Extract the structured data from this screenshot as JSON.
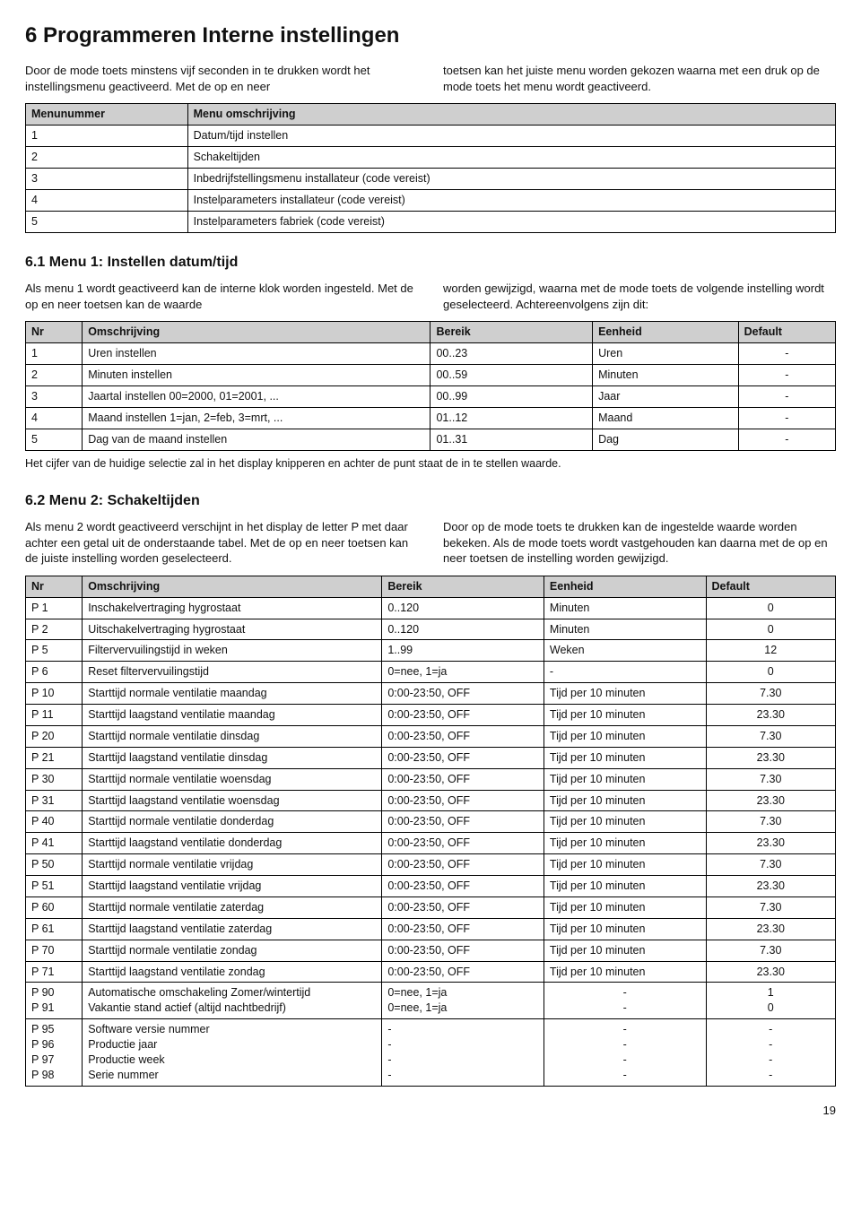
{
  "page": {
    "title": "6 Programmeren Interne instellingen",
    "number": "19"
  },
  "intro": {
    "left": "Door de mode toets minstens vijf seconden in te drukken wordt het instellingsmenu geactiveerd. Met de op en neer",
    "right": "toetsen kan het juiste menu worden gekozen waarna met een druk op de mode toets het menu wordt geactiveerd."
  },
  "menu_table": {
    "headers": [
      "Menunummer",
      "Menu omschrijving"
    ],
    "rows": [
      [
        "1",
        "Datum/tijd instellen"
      ],
      [
        "2",
        "Schakeltijden"
      ],
      [
        "3",
        "Inbedrijfstellingsmenu installateur (code vereist)"
      ],
      [
        "4",
        "Instelparameters installateur (code vereist)"
      ],
      [
        "5",
        "Instelparameters fabriek (code vereist)"
      ]
    ]
  },
  "section1": {
    "title": "6.1 Menu 1: Instellen datum/tijd",
    "left": "Als menu 1 wordt geactiveerd kan de interne klok worden ingesteld. Met de op en neer toetsen kan de waarde",
    "right": "worden gewijzigd, waarna met de mode toets de volgende instelling wordt geselecteerd. Achtereenvolgens zijn dit:",
    "headers": [
      "Nr",
      "Omschrijving",
      "Bereik",
      "Eenheid",
      "Default"
    ],
    "rows": [
      [
        "1",
        "Uren instellen",
        "00..23",
        "Uren",
        "-"
      ],
      [
        "2",
        "Minuten instellen",
        "00..59",
        "Minuten",
        "-"
      ],
      [
        "3",
        "Jaartal instellen 00=2000, 01=2001, ...",
        "00..99",
        "Jaar",
        "-"
      ],
      [
        "4",
        "Maand instellen 1=jan, 2=feb, 3=mrt, ...",
        "01..12",
        "Maand",
        "-"
      ],
      [
        "5",
        "Dag van de maand instellen",
        "01..31",
        "Dag",
        "-"
      ]
    ],
    "note": "Het cijfer van de huidige selectie zal in het display knipperen en achter de punt staat de in te stellen waarde."
  },
  "section2": {
    "title": "6.2 Menu 2: Schakeltijden",
    "left": "Als menu 2 wordt geactiveerd verschijnt in het display de letter P met daar achter een getal uit de onderstaande tabel. Met de op en neer toetsen kan de juiste instelling worden geselecteerd.",
    "right": "Door op de mode toets te drukken kan de ingestelde waarde worden bekeken. Als de mode toets wordt vastgehouden kan daarna met de op en neer toetsen de instelling worden gewijzigd.",
    "headers": [
      "Nr",
      "Omschrijving",
      "Bereik",
      "Eenheid",
      "Default"
    ],
    "rows": [
      [
        "P 1",
        "Inschakelvertraging hygrostaat",
        "0..120",
        "Minuten",
        "0"
      ],
      [
        "P 2",
        "Uitschakelvertraging hygrostaat",
        "0..120",
        "Minuten",
        "0"
      ],
      [
        "P 5",
        "Filtervervuilingstijd in weken",
        "1..99",
        "Weken",
        "12"
      ],
      [
        "P 6",
        "Reset filtervervuilingstijd",
        "0=nee, 1=ja",
        "-",
        "0"
      ],
      [
        "P 10",
        "Starttijd normale ventilatie maandag",
        "0:00-23:50, OFF",
        "Tijd per 10 minuten",
        "7.30"
      ],
      [
        "P 11",
        "Starttijd laagstand ventilatie maandag",
        "0:00-23:50, OFF",
        "Tijd per 10 minuten",
        "23.30"
      ],
      [
        "P 20",
        "Starttijd normale ventilatie dinsdag",
        "0:00-23:50, OFF",
        "Tijd per 10 minuten",
        "7.30"
      ],
      [
        "P 21",
        "Starttijd laagstand ventilatie dinsdag",
        "0:00-23:50, OFF",
        "Tijd per 10 minuten",
        "23.30"
      ],
      [
        "P 30",
        "Starttijd normale ventilatie woensdag",
        "0:00-23:50, OFF",
        "Tijd per 10 minuten",
        "7.30"
      ],
      [
        "P 31",
        "Starttijd laagstand ventilatie woensdag",
        "0:00-23:50, OFF",
        "Tijd per 10 minuten",
        "23.30"
      ],
      [
        "P 40",
        "Starttijd normale ventilatie donderdag",
        "0:00-23:50, OFF",
        "Tijd per 10 minuten",
        "7.30"
      ],
      [
        "P 41",
        "Starttijd laagstand ventilatie donderdag",
        "0:00-23:50, OFF",
        "Tijd per 10 minuten",
        "23.30"
      ],
      [
        "P 50",
        "Starttijd normale ventilatie vrijdag",
        "0:00-23:50, OFF",
        "Tijd per 10 minuten",
        "7.30"
      ],
      [
        "P 51",
        "Starttijd laagstand ventilatie vrijdag",
        "0:00-23:50, OFF",
        "Tijd per 10 minuten",
        "23.30"
      ],
      [
        "P 60",
        "Starttijd normale ventilatie zaterdag",
        "0:00-23:50, OFF",
        "Tijd per 10 minuten",
        "7.30"
      ],
      [
        "P 61",
        "Starttijd laagstand ventilatie zaterdag",
        "0:00-23:50, OFF",
        "Tijd per 10 minuten",
        "23.30"
      ],
      [
        "P 70",
        "Starttijd normale ventilatie zondag",
        "0:00-23:50, OFF",
        "Tijd per 10 minuten",
        "7.30"
      ],
      [
        "P 71",
        "Starttijd laagstand ventilatie zondag",
        "0:00-23:50, OFF",
        "Tijd per 10 minuten",
        "23.30"
      ]
    ],
    "groupA": {
      "nr": "P 90\nP 91",
      "desc": "Automatische omschakeling Zomer/wintertijd\nVakantie stand actief (altijd nachtbedrijf)",
      "range": "0=nee, 1=ja\n0=nee, 1=ja",
      "unit": "-\n-",
      "def": "1\n0"
    },
    "groupB": {
      "nr": "P 95\nP 96\nP 97\nP 98",
      "desc": "Software versie nummer\nProductie jaar\nProductie week\nSerie nummer",
      "range": "-\n-\n-\n-",
      "unit": "-\n-\n-\n-",
      "def": "-\n-\n-\n-"
    }
  }
}
